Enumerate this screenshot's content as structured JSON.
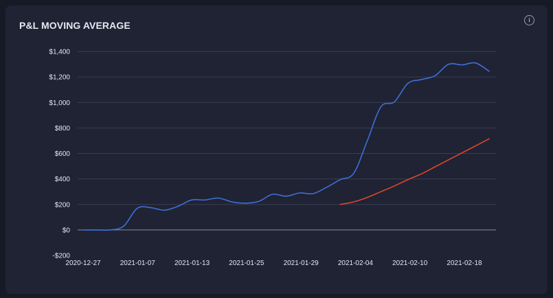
{
  "header": {
    "title": "P&L MOVING AVERAGE",
    "info_glyph": "i"
  },
  "icons": {
    "info": "info-circle-icon"
  },
  "colors": {
    "background": "#161a26",
    "card": "#1f2334",
    "grid": "#3a3f52",
    "zero_line": "#8a8f9c",
    "pnl_series": "#3f6fd8",
    "moving_average_series": "#e0452b"
  },
  "chart_data": {
    "type": "line",
    "title": "P&L MOVING AVERAGE",
    "xlabel": "",
    "ylabel": "",
    "ylim": [
      -200,
      1400
    ],
    "yticks": [
      -200,
      0,
      200,
      400,
      600,
      800,
      1000,
      1200,
      1400
    ],
    "ytick_labels": [
      "-$200",
      "$0",
      "$200",
      "$400",
      "$600",
      "$800",
      "$1,000",
      "$1,200",
      "$1,400"
    ],
    "xtick_labels": [
      "2020-12-27",
      "2021-01-07",
      "2021-01-13",
      "2021-01-25",
      "2021-01-29",
      "2021-02-04",
      "2021-02-10",
      "2021-02-18"
    ],
    "grid": true,
    "legend": "none",
    "n_points": 31,
    "series": [
      {
        "values": [
          0,
          0,
          0,
          30,
          170,
          175,
          155,
          185,
          235,
          235,
          250,
          220,
          210,
          225,
          280,
          265,
          290,
          285,
          335,
          395,
          445,
          700,
          965,
          1005,
          1150,
          1180,
          1210,
          1300,
          1295,
          1310,
          1245
        ]
      },
      {
        "start_index": 19,
        "values": [
          200,
          220,
          255,
          300,
          345,
          395,
          440,
          495,
          550,
          605,
          660,
          715
        ]
      }
    ]
  }
}
